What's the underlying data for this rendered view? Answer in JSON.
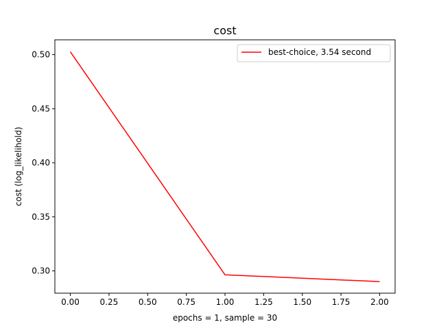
{
  "chart_data": {
    "type": "line",
    "title": "cost",
    "xlabel": "epochs = 1, sample = 30",
    "ylabel": "cost (log_likelihold)",
    "xlim": [
      -0.1,
      2.1
    ],
    "ylim": [
      0.2794,
      0.5137
    ],
    "xticks": [
      0.0,
      0.25,
      0.5,
      0.75,
      1.0,
      1.25,
      1.5,
      1.75,
      2.0
    ],
    "xtick_labels": [
      "0.00",
      "0.25",
      "0.50",
      "0.75",
      "1.00",
      "1.25",
      "1.50",
      "1.75",
      "2.00"
    ],
    "yticks": [
      0.3,
      0.35,
      0.4,
      0.45,
      0.5
    ],
    "ytick_labels": [
      "0.30",
      "0.35",
      "0.40",
      "0.45",
      "0.50"
    ],
    "grid": false,
    "legend_position": "top-right",
    "series": [
      {
        "name": "best-choice, 3.54 second",
        "color": "#ff0000",
        "x": [
          0,
          1,
          2
        ],
        "y": [
          0.5026,
          0.2964,
          0.2901
        ]
      }
    ]
  }
}
